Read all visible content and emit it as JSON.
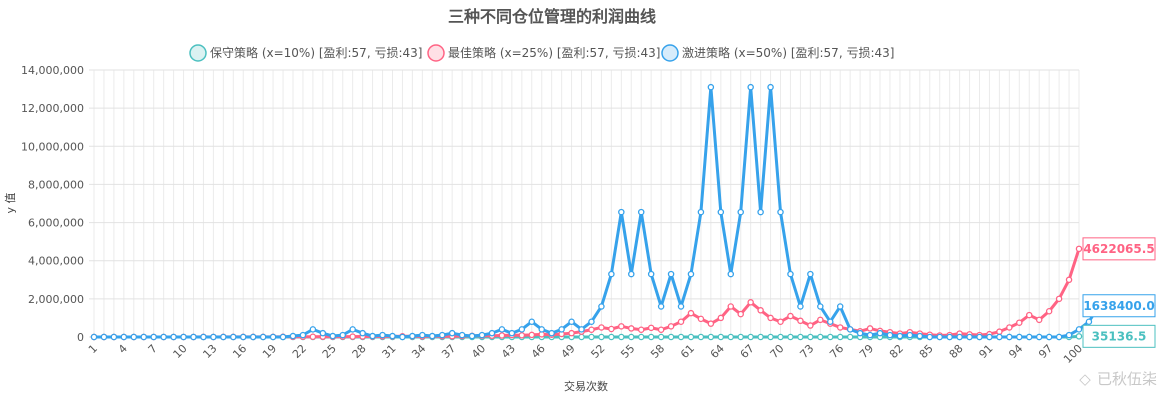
{
  "chart_data": {
    "type": "line",
    "title": "三种不同仓位管理的利润曲线",
    "xlabel": "交易次数",
    "ylabel": "y 值",
    "ylim": [
      0,
      14000000
    ],
    "yticks": [
      0,
      2000000,
      4000000,
      6000000,
      8000000,
      10000000,
      12000000,
      14000000
    ],
    "ytick_labels": [
      "0",
      "2,000,000",
      "4,000,000",
      "6,000,000",
      "8,000,000",
      "10,000,000",
      "12,000,000",
      "14,000,000"
    ],
    "xlim": [
      1,
      100
    ],
    "xtick_labels": [
      "1",
      "4",
      "7",
      "10",
      "13",
      "16",
      "19",
      "22",
      "25",
      "28",
      "31",
      "34",
      "37",
      "40",
      "43",
      "46",
      "49",
      "52",
      "55",
      "58",
      "61",
      "64",
      "67",
      "70",
      "73",
      "76",
      "79",
      "82",
      "85",
      "88",
      "91",
      "94",
      "97",
      "100"
    ],
    "grid": true,
    "legend_position": "top",
    "series": [
      {
        "name": "保守策略 (x=10%) [盈利:57, 亏损:43]",
        "color": "#4bc0c0",
        "end_label": "35136.5",
        "values": [
          0,
          0,
          0,
          0,
          0,
          0,
          0,
          0,
          0,
          0,
          0,
          0,
          0,
          0,
          0,
          0,
          0,
          0,
          0,
          0,
          0,
          0,
          0,
          0,
          0,
          0,
          0,
          0,
          0,
          0,
          0,
          0,
          0,
          0,
          0,
          0,
          0,
          0,
          0,
          0,
          0,
          0,
          0,
          0,
          0,
          0,
          0,
          0,
          0,
          0,
          0,
          0,
          0,
          0,
          0,
          0,
          0,
          0,
          0,
          0,
          0,
          0,
          0,
          0,
          0,
          0,
          0,
          0,
          0,
          0,
          0,
          0,
          0,
          0,
          0,
          0,
          0,
          0,
          0,
          0,
          0,
          0,
          0,
          0,
          0,
          0,
          0,
          0,
          0,
          0,
          0,
          0,
          0,
          0,
          0,
          0,
          0,
          0,
          0,
          35136.5
        ]
      },
      {
        "name": "最佳策略 (x=25%) [盈利:57, 亏损:43]",
        "color": "#ff6384",
        "end_label": "4622065.5",
        "values": [
          1000,
          1200,
          1100,
          1500,
          1300,
          1800,
          1600,
          2200,
          2000,
          2800,
          2500,
          3500,
          3000,
          4500,
          4000,
          5500,
          5000,
          7000,
          8000,
          12000,
          10000,
          15000,
          13000,
          18000,
          16000,
          22000,
          20000,
          28000,
          25000,
          35000,
          30000,
          40000,
          36000,
          30000,
          38000,
          45000,
          40000,
          50000,
          60000,
          70000,
          65000,
          80000,
          100000,
          90000,
          110000,
          140000,
          120000,
          160000,
          200000,
          280000,
          380000,
          500000,
          420000,
          560000,
          450000,
          380000,
          480000,
          380000,
          560000,
          800000,
          1250000,
          950000,
          700000,
          1000000,
          1600000,
          1200000,
          1820000,
          1400000,
          1000000,
          800000,
          1100000,
          850000,
          600000,
          900000,
          700000,
          500000,
          400000,
          300000,
          450000,
          320000,
          250000,
          180000,
          250000,
          180000,
          120000,
          80000,
          100000,
          180000,
          140000,
          100000,
          150000,
          280000,
          500000,
          750000,
          1150000,
          900000,
          1350000,
          2000000,
          3000000,
          4622065.5
        ]
      },
      {
        "name": "激进策略 (x=50%) [盈利:57, 亏损:43]",
        "color": "#36a2eb",
        "end_label": "1638400.0",
        "values": [
          0,
          0,
          0,
          0,
          0,
          0,
          0,
          0,
          0,
          0,
          0,
          0,
          0,
          0,
          0,
          0,
          0,
          0,
          0,
          0,
          50000,
          100000,
          400000,
          200000,
          50000,
          100000,
          400000,
          200000,
          50000,
          100000,
          50000,
          0,
          50000,
          100000,
          50000,
          100000,
          200000,
          100000,
          50000,
          100000,
          200000,
          400000,
          200000,
          400000,
          800000,
          400000,
          200000,
          400000,
          800000,
          400000,
          800000,
          1600000,
          3300000,
          6550000,
          3300000,
          6550000,
          3300000,
          1600000,
          3300000,
          1600000,
          3300000,
          6550000,
          13100000,
          6550000,
          3300000,
          6550000,
          13100000,
          6550000,
          13100000,
          6550000,
          3300000,
          1600000,
          3300000,
          1600000,
          800000,
          1600000,
          400000,
          200000,
          100000,
          200000,
          100000,
          50000,
          100000,
          50000,
          0,
          0,
          0,
          0,
          0,
          0,
          0,
          0,
          0,
          0,
          0,
          0,
          0,
          0,
          100000,
          400000,
          800000,
          1638400.0
        ]
      }
    ]
  },
  "watermark": "已秋伍柒"
}
